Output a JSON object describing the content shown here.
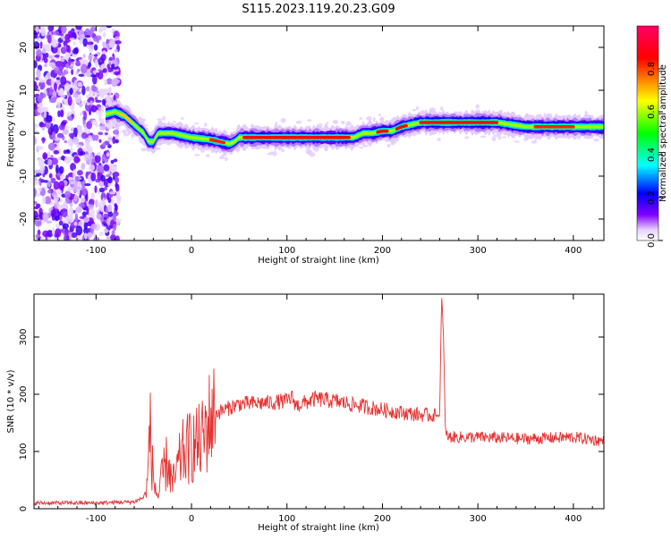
{
  "title": "S115.2023.119.20.23.G09",
  "colors": {
    "snr_line": "#e63232",
    "axis": "#000000",
    "background": "#ffffff",
    "colormap": [
      "#ffffff",
      "#e6ccff",
      "#8000ff",
      "#0000ff",
      "#00ffff",
      "#00ff00",
      "#ffff00",
      "#ff0000",
      "#ff0066"
    ]
  },
  "chart_data": [
    {
      "type": "heatmap",
      "title": "",
      "xlabel": "Height of straight line (km)",
      "ylabel": "Frequency (Hz)",
      "xlim": [
        -165,
        432
      ],
      "ylim": [
        -25,
        25
      ],
      "xticks": [
        -100,
        0,
        100,
        200,
        300,
        400
      ],
      "yticks": [
        -20,
        -10,
        0,
        10,
        20
      ],
      "colorbar": {
        "label": "Normalized spectral amplitude",
        "range": [
          0.0,
          1.0
        ],
        "ticks": [
          "0.0",
          "0.2",
          "0.4",
          "0.6",
          "0.8"
        ]
      },
      "ridge": {
        "x": [
          -165,
          -80,
          -70,
          -60,
          -50,
          -45,
          -40,
          -35,
          -30,
          -20,
          0,
          20,
          30,
          40,
          45,
          50,
          60,
          80,
          100,
          150,
          170,
          180,
          190,
          200,
          210,
          220,
          240,
          260,
          300,
          320,
          350,
          400,
          432
        ],
        "y": [
          0,
          5,
          4,
          2,
          0,
          -2,
          -2,
          0,
          0,
          0,
          -1,
          -1.5,
          -2,
          -2.5,
          -2,
          -1,
          -1,
          -1,
          -1,
          -1,
          -1,
          0,
          0,
          0.5,
          0.5,
          1.5,
          2.5,
          2.5,
          2.5,
          2.5,
          1.5,
          1.5,
          1.5
        ]
      },
      "noise_region_x": [
        -165,
        -80
      ],
      "grid": false
    },
    {
      "type": "line",
      "title": "",
      "xlabel": "Height of straight line (km)",
      "ylabel": "SNR (10 * v/v)",
      "xlim": [
        -165,
        432
      ],
      "ylim": [
        0,
        375
      ],
      "xticks": [
        -100,
        0,
        100,
        200,
        300,
        400
      ],
      "yticks": [
        0,
        100,
        200,
        300
      ],
      "series": [
        {
          "x": [
            -165,
            -100,
            -60,
            -50,
            -46,
            -44,
            -40,
            -35,
            -30,
            -25,
            -20,
            -10,
            0,
            10,
            20,
            30,
            50,
            80,
            100,
            105,
            110,
            130,
            150,
            170,
            200,
            220,
            240,
            260,
            262,
            264,
            266,
            270,
            300,
            350,
            400,
            432
          ],
          "y": [
            10,
            10,
            12,
            20,
            40,
            150,
            50,
            20,
            60,
            85,
            40,
            95,
            110,
            115,
            160,
            170,
            183,
            185,
            188,
            195,
            180,
            192,
            188,
            182,
            173,
            168,
            164,
            163,
            375,
            300,
            130,
            125,
            125,
            122,
            125,
            118
          ]
        }
      ],
      "grid": false
    }
  ]
}
